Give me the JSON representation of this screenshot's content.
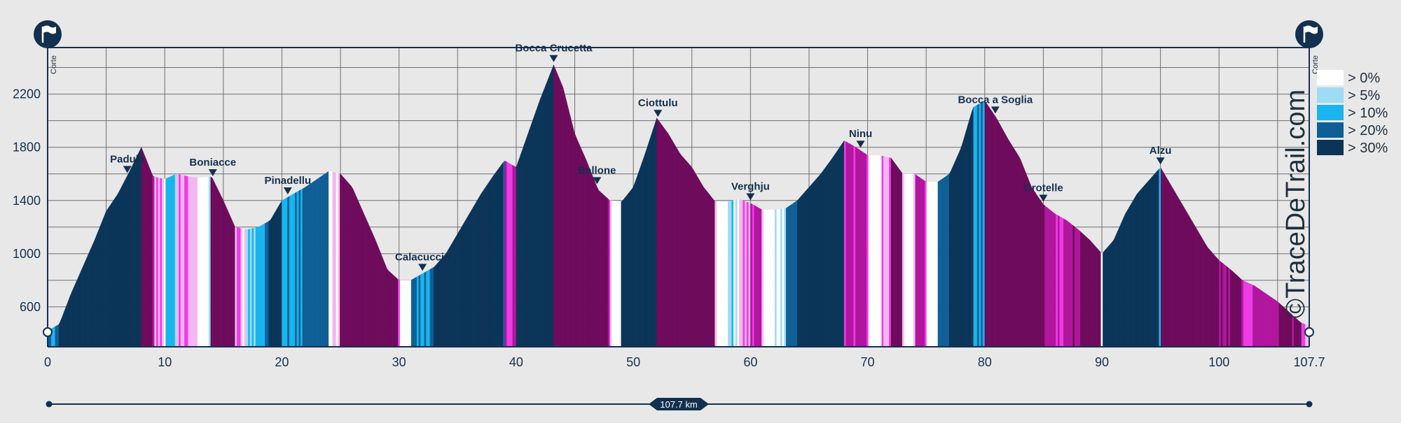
{
  "chart_data": {
    "type": "area",
    "title": "",
    "xlabel": "",
    "ylabel": "",
    "xlim": [
      0,
      107.7
    ],
    "ylim": [
      300,
      2550
    ],
    "x_ticks": [
      0,
      10,
      20,
      30,
      40,
      50,
      60,
      70,
      80,
      90,
      100
    ],
    "x_end_label": "107.7",
    "y_ticks": [
      600,
      1000,
      1400,
      1800,
      2200
    ],
    "grid": true,
    "legend_position": "right",
    "profile": [
      [
        0,
        420
      ],
      [
        1,
        470
      ],
      [
        2,
        700
      ],
      [
        3,
        900
      ],
      [
        4,
        1100
      ],
      [
        5,
        1320
      ],
      [
        6,
        1450
      ],
      [
        7,
        1620
      ],
      [
        8,
        1800
      ],
      [
        9,
        1580
      ],
      [
        10,
        1560
      ],
      [
        11,
        1600
      ],
      [
        12,
        1580
      ],
      [
        13,
        1570
      ],
      [
        14,
        1580
      ],
      [
        15,
        1400
      ],
      [
        16,
        1200
      ],
      [
        17,
        1180
      ],
      [
        18,
        1200
      ],
      [
        19,
        1250
      ],
      [
        20,
        1400
      ],
      [
        21,
        1450
      ],
      [
        22,
        1500
      ],
      [
        23,
        1560
      ],
      [
        24,
        1620
      ],
      [
        25,
        1600
      ],
      [
        26,
        1500
      ],
      [
        27,
        1300
      ],
      [
        28,
        1100
      ],
      [
        29,
        880
      ],
      [
        30,
        800
      ],
      [
        31,
        800
      ],
      [
        32,
        850
      ],
      [
        33,
        900
      ],
      [
        34,
        1000
      ],
      [
        35,
        1150
      ],
      [
        36,
        1300
      ],
      [
        37,
        1450
      ],
      [
        38,
        1580
      ],
      [
        39,
        1700
      ],
      [
        40,
        1650
      ],
      [
        41,
        1900
      ],
      [
        42,
        2150
      ],
      [
        43.2,
        2420
      ],
      [
        44,
        2250
      ],
      [
        45,
        1900
      ],
      [
        46,
        1700
      ],
      [
        47,
        1480
      ],
      [
        48,
        1400
      ],
      [
        49,
        1390
      ],
      [
        50,
        1500
      ],
      [
        51,
        1750
      ],
      [
        52,
        2020
      ],
      [
        53,
        1900
      ],
      [
        54,
        1750
      ],
      [
        55,
        1650
      ],
      [
        56,
        1500
      ],
      [
        57,
        1390
      ],
      [
        58,
        1390
      ],
      [
        59,
        1410
      ],
      [
        60,
        1380
      ],
      [
        61,
        1330
      ],
      [
        62,
        1330
      ],
      [
        63,
        1340
      ],
      [
        64,
        1400
      ],
      [
        65,
        1500
      ],
      [
        66,
        1600
      ],
      [
        67,
        1720
      ],
      [
        68,
        1850
      ],
      [
        69,
        1800
      ],
      [
        70,
        1740
      ],
      [
        71,
        1740
      ],
      [
        72,
        1720
      ],
      [
        73,
        1600
      ],
      [
        74,
        1600
      ],
      [
        75,
        1540
      ],
      [
        76,
        1540
      ],
      [
        77,
        1600
      ],
      [
        78,
        1800
      ],
      [
        79,
        2100
      ],
      [
        80,
        2150
      ],
      [
        81,
        2020
      ],
      [
        82,
        1860
      ],
      [
        83,
        1720
      ],
      [
        84,
        1500
      ],
      [
        85,
        1370
      ],
      [
        86,
        1300
      ],
      [
        87,
        1250
      ],
      [
        88,
        1180
      ],
      [
        89,
        1100
      ],
      [
        90,
        1000
      ],
      [
        91,
        1100
      ],
      [
        92,
        1300
      ],
      [
        93,
        1450
      ],
      [
        94,
        1550
      ],
      [
        95,
        1650
      ],
      [
        96,
        1500
      ],
      [
        97,
        1350
      ],
      [
        98,
        1200
      ],
      [
        99,
        1050
      ],
      [
        100,
        950
      ],
      [
        101,
        880
      ],
      [
        102,
        800
      ],
      [
        103,
        760
      ],
      [
        104,
        700
      ],
      [
        105,
        640
      ],
      [
        106,
        560
      ],
      [
        107,
        480
      ],
      [
        107.7,
        460
      ]
    ],
    "waypoints": [
      {
        "name": "Padula",
        "x": 6.8
      },
      {
        "name": "Boniacce",
        "x": 14.1
      },
      {
        "name": "Pinadellu",
        "x": 20.5
      },
      {
        "name": "Calacuccia",
        "x": 32.0
      },
      {
        "name": "Bocca Crucetta",
        "x": 43.2
      },
      {
        "name": "Ballone",
        "x": 46.9
      },
      {
        "name": "Ciottulu",
        "x": 52.1
      },
      {
        "name": "Verghju",
        "x": 60.0
      },
      {
        "name": "Ninu",
        "x": 69.4
      },
      {
        "name": "Bocca a Soglia",
        "x": 80.9
      },
      {
        "name": "Grotelle",
        "x": 85.0
      },
      {
        "name": "Alzu",
        "x": 95.0
      }
    ],
    "start_label": "Corte",
    "end_label": "Corte",
    "legend": [
      {
        "label": "> 0%",
        "color": "#ffffff"
      },
      {
        "label": "> 5%",
        "color": "#9fdcf4"
      },
      {
        "label": "> 10%",
        "color": "#18b5ee"
      },
      {
        "label": "> 20%",
        "color": "#0f5f97"
      },
      {
        "label": "> 30%",
        "color": "#0b3558"
      }
    ],
    "descent_colors": [
      "#ffffff",
      "#f4b6f0",
      "#ee3ce4",
      "#b1169e",
      "#6e0b5c"
    ]
  },
  "distance_badge": "107.7 km",
  "credit": "©TraceDeTrail.com",
  "colors": {
    "axis": "#14304f",
    "grid": "#6f6f6f",
    "background": "#e8e8e8"
  }
}
